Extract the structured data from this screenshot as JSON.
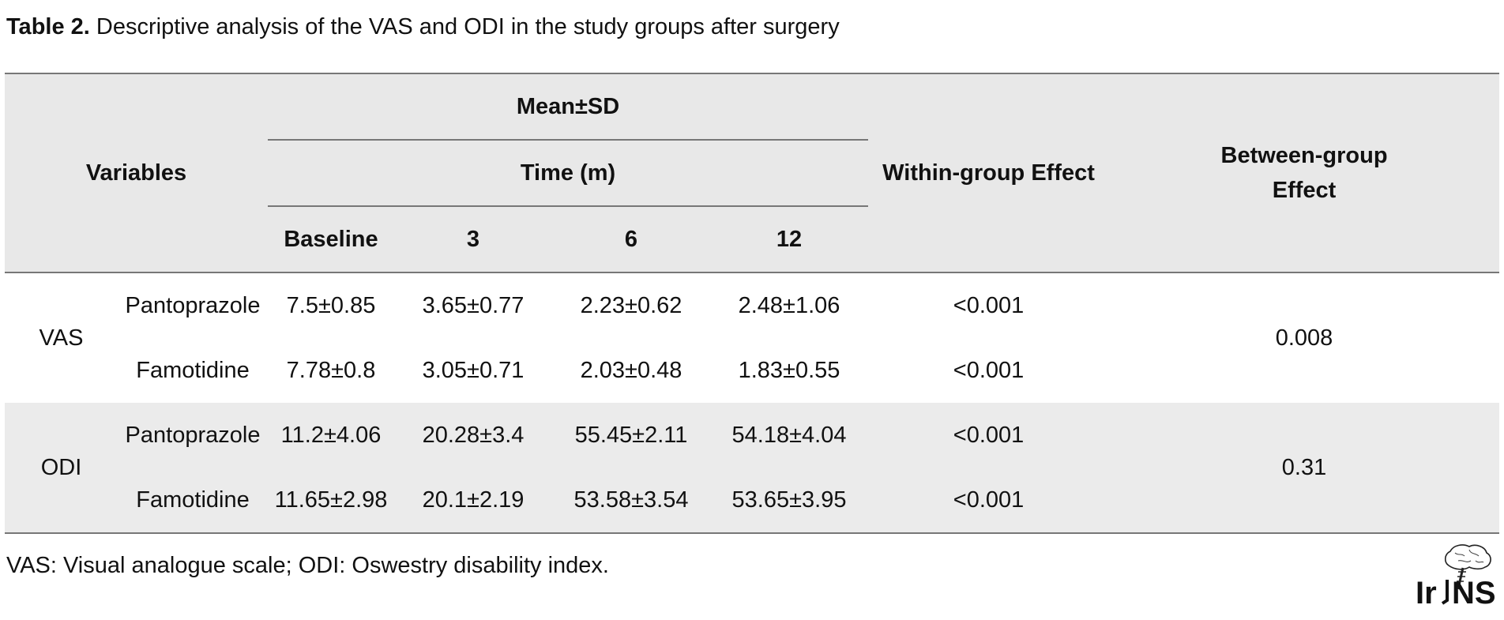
{
  "caption": {
    "label": "Table 2.",
    "text": " Descriptive analysis of the VAS and ODI in the study groups after surgery"
  },
  "table": {
    "header": {
      "variables": "Variables",
      "mean_sd": "Mean±SD",
      "time": "Time (m)",
      "within": "Within-group Effect",
      "between": "Between-group Effect",
      "time_points": [
        "Baseline",
        "3",
        "6",
        "12"
      ]
    },
    "groups": [
      {
        "name": "VAS",
        "between": "0.008",
        "rows": [
          {
            "drug": "Pantoprazole",
            "values": [
              "7.5±0.85",
              "3.65±0.77",
              "2.23±0.62",
              "2.48±1.06"
            ],
            "within": "<0.001"
          },
          {
            "drug": "Famotidine",
            "values": [
              "7.78±0.8",
              "3.05±0.71",
              "2.03±0.48",
              "1.83±0.55"
            ],
            "within": "<0.001"
          }
        ]
      },
      {
        "name": "ODI",
        "between": "0.31",
        "rows": [
          {
            "drug": "Pantoprazole",
            "values": [
              "11.2±4.06",
              "20.28±3.4",
              "55.45±2.11",
              "54.18±4.04"
            ],
            "within": "<0.001"
          },
          {
            "drug": "Famotidine",
            "values": [
              "11.65±2.98",
              "20.1±2.19",
              "53.58±3.54",
              "53.65±3.95"
            ],
            "within": "<0.001"
          }
        ]
      }
    ]
  },
  "footnote": "VAS: Visual analogue scale; ODI: Oswestry disability index.",
  "logo": {
    "text": "IrJNS",
    "icon": "brain-logo-icon"
  }
}
